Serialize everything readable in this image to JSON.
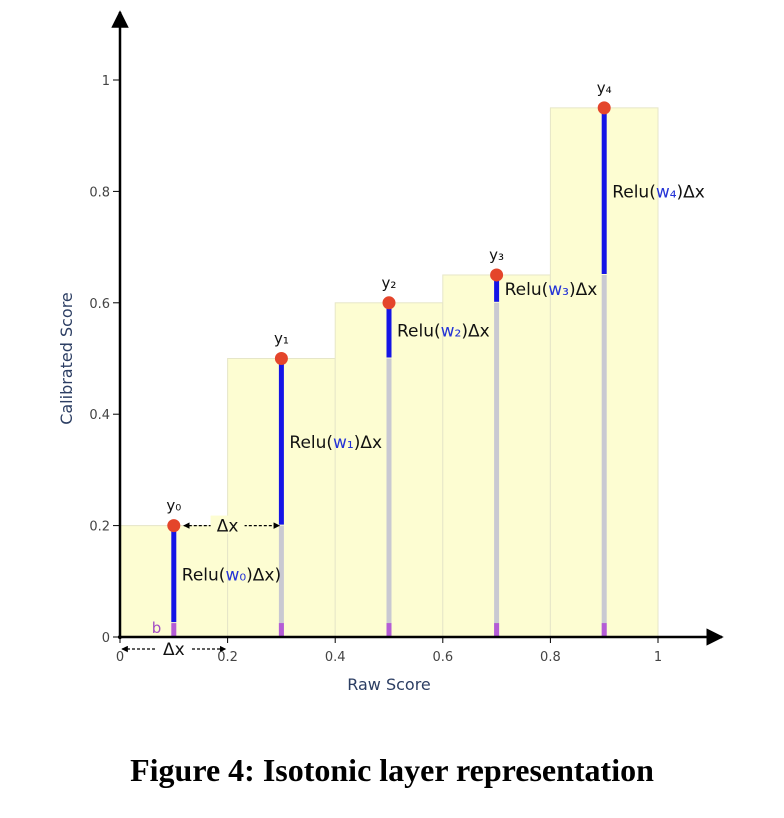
{
  "caption": "Figure 4: Isotonic layer representation",
  "chart_data": {
    "type": "bar",
    "xlabel": "Raw Score",
    "ylabel": "Calibrated Score",
    "xlim": [
      0,
      1
    ],
    "ylim": [
      0,
      1
    ],
    "x_ticks": [
      "0",
      "0.2",
      "0.4",
      "0.6",
      "0.8",
      "1"
    ],
    "y_ticks": [
      "0",
      "0.2",
      "0.4",
      "0.6",
      "0.8",
      "1"
    ],
    "grid": false,
    "bins": [
      {
        "x0": 0.0,
        "x1": 0.2,
        "y": 0.2
      },
      {
        "x0": 0.2,
        "x1": 0.4,
        "y": 0.5
      },
      {
        "x0": 0.4,
        "x1": 0.6,
        "y": 0.6
      },
      {
        "x0": 0.6,
        "x1": 0.8,
        "y": 0.65
      },
      {
        "x0": 0.8,
        "x1": 1.0,
        "y": 0.95
      }
    ],
    "points": [
      {
        "label": "y₀",
        "x": 0.1,
        "y": 0.2,
        "seg_from": 0.0,
        "anno_pre": "Relu(",
        "anno_w": "w₀",
        "anno_post": ")Δx)"
      },
      {
        "label": "y₁",
        "x": 0.3,
        "y": 0.5,
        "seg_from": 0.2,
        "anno_pre": "Relu(",
        "anno_w": "w₁",
        "anno_post": ")Δx"
      },
      {
        "label": "y₂",
        "x": 0.5,
        "y": 0.6,
        "seg_from": 0.5,
        "anno_pre": "Relu(",
        "anno_w": "w₂",
        "anno_post": ")Δx"
      },
      {
        "label": "y₃",
        "x": 0.7,
        "y": 0.65,
        "seg_from": 0.6,
        "anno_pre": "Relu(",
        "anno_w": "w₃",
        "anno_post": ")Δx"
      },
      {
        "label": "y₄",
        "x": 0.9,
        "y": 0.95,
        "seg_from": 0.65,
        "anno_pre": "Relu(",
        "anno_w": "w₄",
        "anno_post": ")Δx"
      }
    ],
    "bias_label": "b",
    "bias_value": 0.025,
    "delta_label": "Δx",
    "colors": {
      "bin_fill": "#fdfdd2",
      "bin_edge": "#e6e6c8",
      "point": "#e4452b",
      "increment": "#1414e6",
      "stem": "#c9c9d2",
      "bias": "#b45cd6",
      "axis": "#000000"
    }
  }
}
